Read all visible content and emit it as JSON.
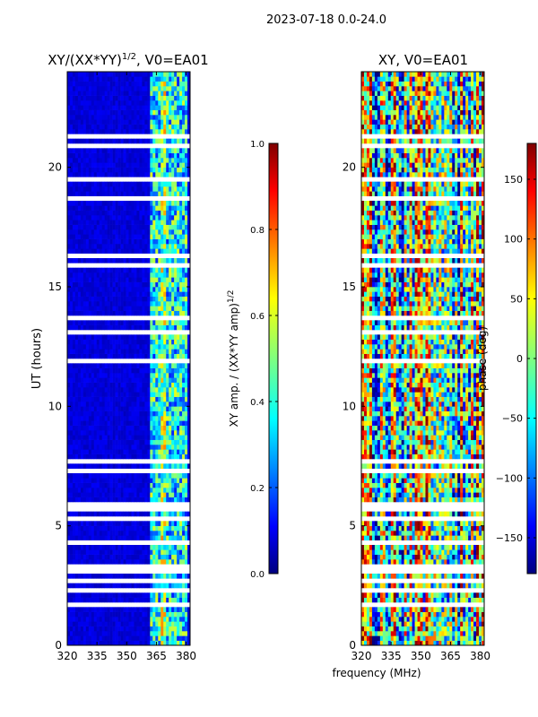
{
  "page": {
    "suptitle": "2023-07-18 0.0-24.0"
  },
  "chart_data": [
    {
      "type": "heatmap",
      "title": "XY/(XX*YY)^1/2, V0=EA01",
      "title_main": "XY/(XX*YY)",
      "title_sup": "1/2",
      "title_tail": ", V0=EA01",
      "xlabel": "frequency (MHz)",
      "ylabel": "UT (hours)",
      "xlim": [
        320,
        382
      ],
      "ylim": [
        0,
        24
      ],
      "xticks": [
        "320",
        "335",
        "350",
        "365",
        "380"
      ],
      "yticks": [
        "0",
        "5",
        "10",
        "15",
        "20"
      ],
      "colormap": "jet",
      "colorbar": {
        "label": "XY amp. / (XX*YY amp)^1/2",
        "label_main": "XY amp. / (XX*YY amp)",
        "label_sup": "1/2",
        "range": [
          0.0,
          1.0
        ],
        "ticks": [
          "0.0",
          "0.2",
          "0.4",
          "0.6",
          "0.8",
          "1.0"
        ]
      },
      "notes": "Mostly low values (~0.05) across band; enhanced values (0.3-0.8) in channels 362-380 MHz"
    },
    {
      "type": "heatmap",
      "title": "XY, V0=EA01",
      "xlabel": "frequency (MHz)",
      "ylabel": "",
      "xlim": [
        320,
        382
      ],
      "ylim": [
        0,
        24
      ],
      "xticks": [
        "320",
        "335",
        "350",
        "365",
        "380"
      ],
      "yticks": [
        "0",
        "5",
        "10",
        "15",
        "20"
      ],
      "colormap": "jet",
      "colorbar": {
        "label": "phase (deg)",
        "range": [
          -180,
          180
        ],
        "ticks": [
          "−150",
          "−100",
          "−50",
          "0",
          "50",
          "100",
          "150"
        ]
      },
      "notes": "Noisy phase values spanning full range"
    }
  ]
}
